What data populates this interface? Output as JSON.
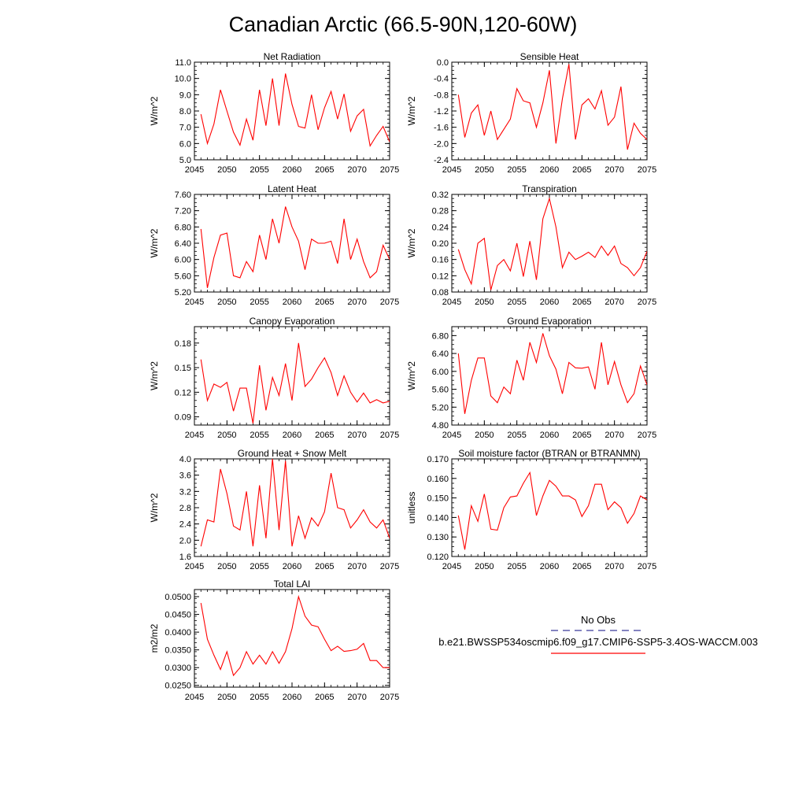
{
  "title": "Canadian Arctic (66.5-90N,120-60W)",
  "legend": {
    "obs_label": "No Obs",
    "model_label": "b.e21.BWSSP534oscmip6.f09_g17.CMIP6-SSP5-3.4OS-WACCM.003",
    "obs_color": "#3a3a9a",
    "model_color": "#ff0000"
  },
  "line_color": "#ff0000",
  "chart_data": [
    {
      "type": "line",
      "title": "Net Radiation",
      "ylabel": "W/m^2",
      "xlim": [
        2045,
        2075
      ],
      "ylim": [
        5.0,
        11.0
      ],
      "xticks": [
        2045,
        2050,
        2055,
        2060,
        2065,
        2070,
        2075
      ],
      "xtick_labels": [
        "2045",
        "2050",
        "2055",
        "2060",
        "2065",
        "2070",
        "2075"
      ],
      "yticks": [
        5.0,
        6.0,
        7.0,
        8.0,
        9.0,
        10.0,
        11.0
      ],
      "ytick_labels": [
        "5.0",
        "6.0",
        "7.0",
        "8.0",
        "9.0",
        "10.0",
        "11.0"
      ],
      "x": [
        2046,
        2047,
        2048,
        2049,
        2050,
        2051,
        2052,
        2053,
        2054,
        2055,
        2056,
        2057,
        2058,
        2059,
        2060,
        2061,
        2062,
        2063,
        2064,
        2065,
        2066,
        2067,
        2068,
        2069,
        2070,
        2071,
        2072,
        2073,
        2074,
        2075
      ],
      "values": [
        7.8,
        6.0,
        7.2,
        9.3,
        8.0,
        6.7,
        5.9,
        7.5,
        6.2,
        9.3,
        7.1,
        10.0,
        7.1,
        10.3,
        8.4,
        7.05,
        6.95,
        9.0,
        6.85,
        8.2,
        9.2,
        7.5,
        9.05,
        6.75,
        7.7,
        8.1,
        5.85,
        6.5,
        7.05,
        6.1
      ]
    },
    {
      "type": "line",
      "title": "Sensible Heat",
      "ylabel": "W/m^2",
      "xlim": [
        2045,
        2075
      ],
      "ylim": [
        -2.4,
        0.0
      ],
      "xticks": [
        2045,
        2050,
        2055,
        2060,
        2065,
        2070,
        2075
      ],
      "xtick_labels": [
        "2045",
        "2050",
        "2055",
        "2060",
        "2065",
        "2070",
        "2075"
      ],
      "yticks": [
        -2.4,
        -2.0,
        -1.6,
        -1.2,
        -0.8,
        -0.4,
        0.0
      ],
      "ytick_labels": [
        "-2.4",
        "-2.0",
        "-1.6",
        "-1.2",
        "-0.8",
        "-0.4",
        "0.0"
      ],
      "x": [
        2046,
        2047,
        2048,
        2049,
        2050,
        2051,
        2052,
        2053,
        2054,
        2055,
        2056,
        2057,
        2058,
        2059,
        2060,
        2061,
        2062,
        2063,
        2064,
        2065,
        2066,
        2067,
        2068,
        2069,
        2070,
        2071,
        2072,
        2073,
        2074,
        2075
      ],
      "values": [
        -0.8,
        -1.85,
        -1.25,
        -1.05,
        -1.8,
        -1.2,
        -1.9,
        -1.65,
        -1.4,
        -0.65,
        -0.95,
        -1.0,
        -1.6,
        -1.0,
        -0.2,
        -2.0,
        -0.9,
        -0.05,
        -1.9,
        -1.05,
        -0.9,
        -1.15,
        -0.7,
        -1.55,
        -1.35,
        -0.6,
        -2.15,
        -1.5,
        -1.75,
        -1.9
      ]
    },
    {
      "type": "line",
      "title": "Latent Heat",
      "ylabel": "W/m^2",
      "xlim": [
        2045,
        2075
      ],
      "ylim": [
        5.2,
        7.6
      ],
      "xticks": [
        2045,
        2050,
        2055,
        2060,
        2065,
        2070,
        2075
      ],
      "xtick_labels": [
        "2045",
        "2050",
        "2055",
        "2060",
        "2065",
        "2070",
        "2075"
      ],
      "yticks": [
        5.2,
        5.6,
        6.0,
        6.4,
        6.8,
        7.2,
        7.6
      ],
      "ytick_labels": [
        "5.20",
        "5.60",
        "6.00",
        "6.40",
        "6.80",
        "7.20",
        "7.60"
      ],
      "x": [
        2046,
        2047,
        2048,
        2049,
        2050,
        2051,
        2052,
        2053,
        2054,
        2055,
        2056,
        2057,
        2058,
        2059,
        2060,
        2061,
        2062,
        2063,
        2064,
        2065,
        2066,
        2067,
        2068,
        2069,
        2070,
        2071,
        2072,
        2073,
        2074,
        2075
      ],
      "values": [
        6.75,
        5.3,
        6.05,
        6.6,
        6.65,
        5.6,
        5.55,
        5.95,
        5.7,
        6.6,
        6.0,
        7.0,
        6.4,
        7.3,
        6.8,
        6.45,
        5.75,
        6.5,
        6.4,
        6.4,
        6.45,
        5.9,
        7.0,
        6.0,
        6.5,
        5.95,
        5.55,
        5.7,
        6.35,
        6.0
      ]
    },
    {
      "type": "line",
      "title": "Transpiration",
      "ylabel": "W/m^2",
      "xlim": [
        2045,
        2075
      ],
      "ylim": [
        0.08,
        0.32
      ],
      "xticks": [
        2045,
        2050,
        2055,
        2060,
        2065,
        2070,
        2075
      ],
      "xtick_labels": [
        "2045",
        "2050",
        "2055",
        "2060",
        "2065",
        "2070",
        "2075"
      ],
      "yticks": [
        0.08,
        0.12,
        0.16,
        0.2,
        0.24,
        0.28,
        0.32
      ],
      "ytick_labels": [
        "0.08",
        "0.12",
        "0.16",
        "0.20",
        "0.24",
        "0.28",
        "0.32"
      ],
      "x": [
        2046,
        2047,
        2048,
        2049,
        2050,
        2051,
        2052,
        2053,
        2054,
        2055,
        2056,
        2057,
        2058,
        2059,
        2060,
        2061,
        2062,
        2063,
        2064,
        2065,
        2066,
        2067,
        2068,
        2069,
        2070,
        2071,
        2072,
        2073,
        2074,
        2075
      ],
      "values": [
        0.185,
        0.135,
        0.1,
        0.2,
        0.212,
        0.085,
        0.145,
        0.16,
        0.132,
        0.2,
        0.118,
        0.205,
        0.11,
        0.26,
        0.31,
        0.24,
        0.14,
        0.178,
        0.16,
        0.168,
        0.178,
        0.165,
        0.193,
        0.17,
        0.193,
        0.15,
        0.14,
        0.12,
        0.14,
        0.18
      ]
    },
    {
      "type": "line",
      "title": "Canopy Evaporation",
      "ylabel": "W/m^2",
      "xlim": [
        2045,
        2075
      ],
      "ylim": [
        0.08,
        0.2
      ],
      "xticks": [
        2045,
        2050,
        2055,
        2060,
        2065,
        2070,
        2075
      ],
      "xtick_labels": [
        "2045",
        "2050",
        "2055",
        "2060",
        "2065",
        "2070",
        "2075"
      ],
      "yticks": [
        0.09,
        0.12,
        0.15,
        0.18
      ],
      "ytick_labels": [
        "0.09",
        "0.12",
        "0.15",
        "0.18"
      ],
      "x": [
        2046,
        2047,
        2048,
        2049,
        2050,
        2051,
        2052,
        2053,
        2054,
        2055,
        2056,
        2057,
        2058,
        2059,
        2060,
        2061,
        2062,
        2063,
        2064,
        2065,
        2066,
        2067,
        2068,
        2069,
        2070,
        2071,
        2072,
        2073,
        2074,
        2075
      ],
      "values": [
        0.16,
        0.11,
        0.13,
        0.126,
        0.132,
        0.097,
        0.125,
        0.125,
        0.082,
        0.153,
        0.098,
        0.138,
        0.116,
        0.155,
        0.11,
        0.18,
        0.127,
        0.136,
        0.15,
        0.162,
        0.144,
        0.116,
        0.14,
        0.12,
        0.108,
        0.119,
        0.107,
        0.111,
        0.107,
        0.109
      ]
    },
    {
      "type": "line",
      "title": "Ground Evaporation",
      "ylabel": "W/m^2",
      "xlim": [
        2045,
        2075
      ],
      "ylim": [
        4.8,
        7.0
      ],
      "xticks": [
        2045,
        2050,
        2055,
        2060,
        2065,
        2070,
        2075
      ],
      "xtick_labels": [
        "2045",
        "2050",
        "2055",
        "2060",
        "2065",
        "2070",
        "2075"
      ],
      "yticks": [
        4.8,
        5.2,
        5.6,
        6.0,
        6.4,
        6.8
      ],
      "ytick_labels": [
        "4.80",
        "5.20",
        "5.60",
        "6.00",
        "6.40",
        "6.80"
      ],
      "x": [
        2046,
        2047,
        2048,
        2049,
        2050,
        2051,
        2052,
        2053,
        2054,
        2055,
        2056,
        2057,
        2058,
        2059,
        2060,
        2061,
        2062,
        2063,
        2064,
        2065,
        2066,
        2067,
        2068,
        2069,
        2070,
        2071,
        2072,
        2073,
        2074,
        2075
      ],
      "values": [
        6.4,
        5.05,
        5.8,
        6.3,
        6.3,
        5.45,
        5.3,
        5.65,
        5.5,
        6.25,
        5.8,
        6.65,
        6.2,
        6.85,
        6.35,
        6.05,
        5.5,
        6.2,
        6.08,
        6.07,
        6.1,
        5.6,
        6.65,
        5.7,
        6.22,
        5.7,
        5.3,
        5.5,
        6.12,
        5.7
      ]
    },
    {
      "type": "line",
      "title": "Ground Heat + Snow Melt",
      "ylabel": "W/m^2",
      "xlim": [
        2045,
        2075
      ],
      "ylim": [
        1.6,
        4.0
      ],
      "xticks": [
        2045,
        2050,
        2055,
        2060,
        2065,
        2070,
        2075
      ],
      "xtick_labels": [
        "2045",
        "2050",
        "2055",
        "2060",
        "2065",
        "2070",
        "2075"
      ],
      "yticks": [
        1.6,
        2.0,
        2.4,
        2.8,
        3.2,
        3.6,
        4.0
      ],
      "ytick_labels": [
        "1.6",
        "2.0",
        "2.4",
        "2.8",
        "3.2",
        "3.6",
        "4.0"
      ],
      "x": [
        2046,
        2047,
        2048,
        2049,
        2050,
        2051,
        2052,
        2053,
        2054,
        2055,
        2056,
        2057,
        2058,
        2059,
        2060,
        2061,
        2062,
        2063,
        2064,
        2065,
        2066,
        2067,
        2068,
        2069,
        2070,
        2071,
        2072,
        2073,
        2074,
        2075
      ],
      "values": [
        1.85,
        2.5,
        2.45,
        3.75,
        3.15,
        2.35,
        2.25,
        3.2,
        1.85,
        3.35,
        2.05,
        4.0,
        2.25,
        3.95,
        1.85,
        2.6,
        2.05,
        2.55,
        2.35,
        2.7,
        3.65,
        2.8,
        2.75,
        2.3,
        2.5,
        2.75,
        2.45,
        2.3,
        2.5,
        2.05
      ]
    },
    {
      "type": "line",
      "title": "Soil moisture factor (BTRAN or BTRANMN)",
      "ylabel": "unitless",
      "xlim": [
        2045,
        2075
      ],
      "ylim": [
        0.12,
        0.17
      ],
      "xticks": [
        2045,
        2050,
        2055,
        2060,
        2065,
        2070,
        2075
      ],
      "xtick_labels": [
        "2045",
        "2050",
        "2055",
        "2060",
        "2065",
        "2070",
        "2075"
      ],
      "yticks": [
        0.12,
        0.13,
        0.14,
        0.15,
        0.16,
        0.17
      ],
      "ytick_labels": [
        "0.120",
        "0.130",
        "0.140",
        "0.150",
        "0.160",
        "0.170"
      ],
      "x": [
        2046,
        2047,
        2048,
        2049,
        2050,
        2051,
        2052,
        2053,
        2054,
        2055,
        2056,
        2057,
        2058,
        2059,
        2060,
        2061,
        2062,
        2063,
        2064,
        2065,
        2066,
        2067,
        2068,
        2069,
        2070,
        2071,
        2072,
        2073,
        2074,
        2075
      ],
      "values": [
        0.141,
        0.1235,
        0.146,
        0.138,
        0.152,
        0.134,
        0.1335,
        0.145,
        0.1505,
        0.151,
        0.1575,
        0.163,
        0.141,
        0.151,
        0.159,
        0.156,
        0.151,
        0.151,
        0.149,
        0.1405,
        0.146,
        0.157,
        0.157,
        0.144,
        0.148,
        0.145,
        0.137,
        0.142,
        0.151,
        0.149
      ]
    },
    {
      "type": "line",
      "title": "Total LAI",
      "ylabel": "m2/m2",
      "xlim": [
        2045,
        2075
      ],
      "ylim": [
        0.0245,
        0.052
      ],
      "xticks": [
        2045,
        2050,
        2055,
        2060,
        2065,
        2070,
        2075
      ],
      "xtick_labels": [
        "2045",
        "2050",
        "2055",
        "2060",
        "2065",
        "2070",
        "2075"
      ],
      "yticks": [
        0.025,
        0.03,
        0.035,
        0.04,
        0.045,
        0.05
      ],
      "ytick_labels": [
        "0.0250",
        "0.0300",
        "0.0350",
        "0.0400",
        "0.0450",
        "0.0500"
      ],
      "x": [
        2046,
        2047,
        2048,
        2049,
        2050,
        2051,
        2052,
        2053,
        2054,
        2055,
        2056,
        2057,
        2058,
        2059,
        2060,
        2061,
        2062,
        2063,
        2064,
        2065,
        2066,
        2067,
        2068,
        2069,
        2070,
        2071,
        2072,
        2073,
        2074,
        2075
      ],
      "values": [
        0.0482,
        0.038,
        0.0335,
        0.0295,
        0.0345,
        0.0278,
        0.03,
        0.0345,
        0.031,
        0.0335,
        0.031,
        0.0345,
        0.0312,
        0.0345,
        0.041,
        0.05,
        0.0445,
        0.042,
        0.0415,
        0.038,
        0.0348,
        0.036,
        0.0346,
        0.0348,
        0.0352,
        0.0368,
        0.032,
        0.032,
        0.03,
        0.03
      ]
    }
  ]
}
